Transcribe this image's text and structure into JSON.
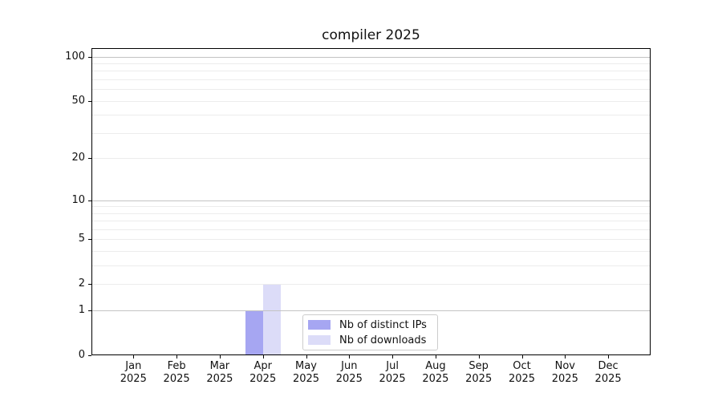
{
  "title": "compiler 2025",
  "legend": {
    "items": [
      {
        "label": "Nb of distinct IPs",
        "color": "#a6a6f2"
      },
      {
        "label": "Nb of downloads",
        "color": "#dcdcf8"
      }
    ]
  },
  "axes": {
    "y_tick_labels": [
      "0",
      "1",
      "2",
      "5",
      "10",
      "20",
      "50",
      "100"
    ],
    "x_tick_labels": [
      "Jan\n2025",
      "Feb\n2025",
      "Mar\n2025",
      "Apr\n2025",
      "May\n2025",
      "Jun\n2025",
      "Jul\n2025",
      "Aug\n2025",
      "Sep\n2025",
      "Oct\n2025",
      "Nov\n2025",
      "Dec\n2025"
    ]
  },
  "chart_data": {
    "type": "bar",
    "title": "compiler 2025",
    "categories": [
      "Jan 2025",
      "Feb 2025",
      "Mar 2025",
      "Apr 2025",
      "May 2025",
      "Jun 2025",
      "Jul 2025",
      "Aug 2025",
      "Sep 2025",
      "Oct 2025",
      "Nov 2025",
      "Dec 2025"
    ],
    "series": [
      {
        "name": "Nb of distinct IPs",
        "color": "#a6a6f2",
        "values": [
          0,
          0,
          0,
          1,
          0,
          0,
          0,
          0,
          0,
          0,
          0,
          0
        ]
      },
      {
        "name": "Nb of downloads",
        "color": "#dcdcf8",
        "values": [
          0,
          0,
          0,
          2,
          0,
          0,
          0,
          0,
          0,
          0,
          0,
          0
        ]
      }
    ],
    "xlabel": "",
    "ylabel": "",
    "ylim": [
      0,
      100
    ],
    "yscale": "log(1+y)",
    "y_ticks": [
      0,
      1,
      2,
      5,
      10,
      20,
      50,
      100
    ],
    "y_major_gridlines": [
      1,
      10,
      100
    ],
    "y_minor_gridlines": [
      2,
      3,
      4,
      5,
      6,
      7,
      8,
      9,
      20,
      30,
      40,
      50,
      60,
      70,
      80,
      90
    ],
    "grid": true,
    "legend_position": "lower center"
  },
  "colors": {
    "background": "#ffffff",
    "spine": "#000000",
    "major_grid": "#c3c3c3",
    "minor_grid": "#ececec",
    "bar_distinct_ips": "#a6a6f2",
    "bar_downloads": "#dcdcf8"
  }
}
